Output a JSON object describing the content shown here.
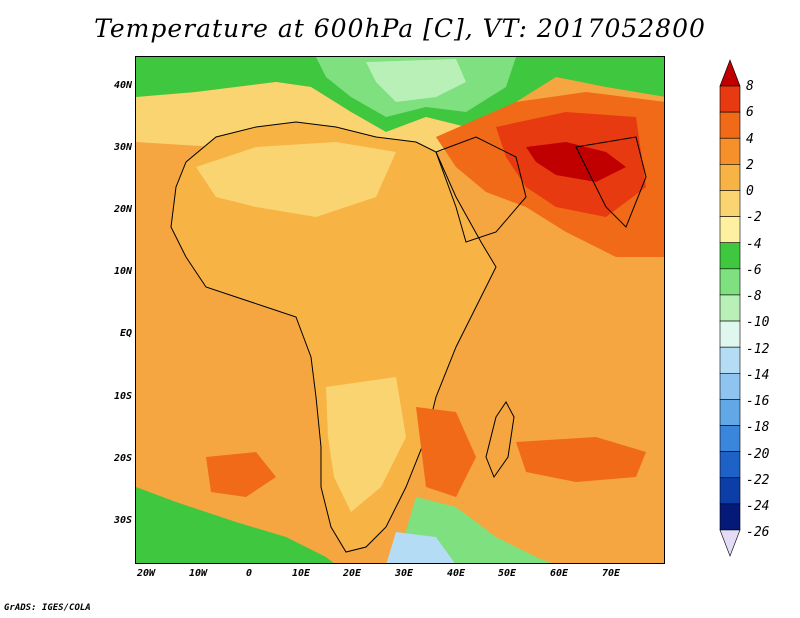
{
  "title": "Temperature at 600hPa [C], VT: 2017052800",
  "credit": "GrADS: IGES/COLA",
  "lat_ticks": [
    "40N",
    "30N",
    "20N",
    "10N",
    "EQ",
    "10S",
    "20S",
    "30S"
  ],
  "lon_ticks": [
    "20W",
    "10W",
    "0",
    "10E",
    "20E",
    "30E",
    "40E",
    "50E",
    "60E",
    "70E"
  ],
  "colorbar": {
    "labels": [
      "8",
      "6",
      "4",
      "2",
      "0",
      "-2",
      "-4",
      "-6",
      "-8",
      "-10",
      "-12",
      "-14",
      "-16",
      "-18",
      "-20",
      "-22",
      "-24",
      "-26"
    ],
    "colors": [
      "#c00000",
      "#e83a10",
      "#f06a18",
      "#f5902a",
      "#f7b444",
      "#fad470",
      "#fdf0a0",
      "#3fc73f",
      "#7ee07e",
      "#b8f0b8",
      "#dff7ee",
      "#b5dcf5",
      "#8ec4ef",
      "#62a7e6",
      "#3a86db",
      "#1e62c8",
      "#0c3ea8",
      "#051a78",
      "#e4dcf6"
    ]
  },
  "map_colors": {
    "ocean_warm": "#f6a640",
    "land": "#f7b444",
    "land_light": "#fad470",
    "hot": "#f06a18",
    "hotter": "#e83a10",
    "hottest": "#c00000",
    "cool": "#3fc73f",
    "cool_light": "#7ee07e",
    "pale": "#b8f0b8",
    "cold": "#b5dcf5"
  }
}
